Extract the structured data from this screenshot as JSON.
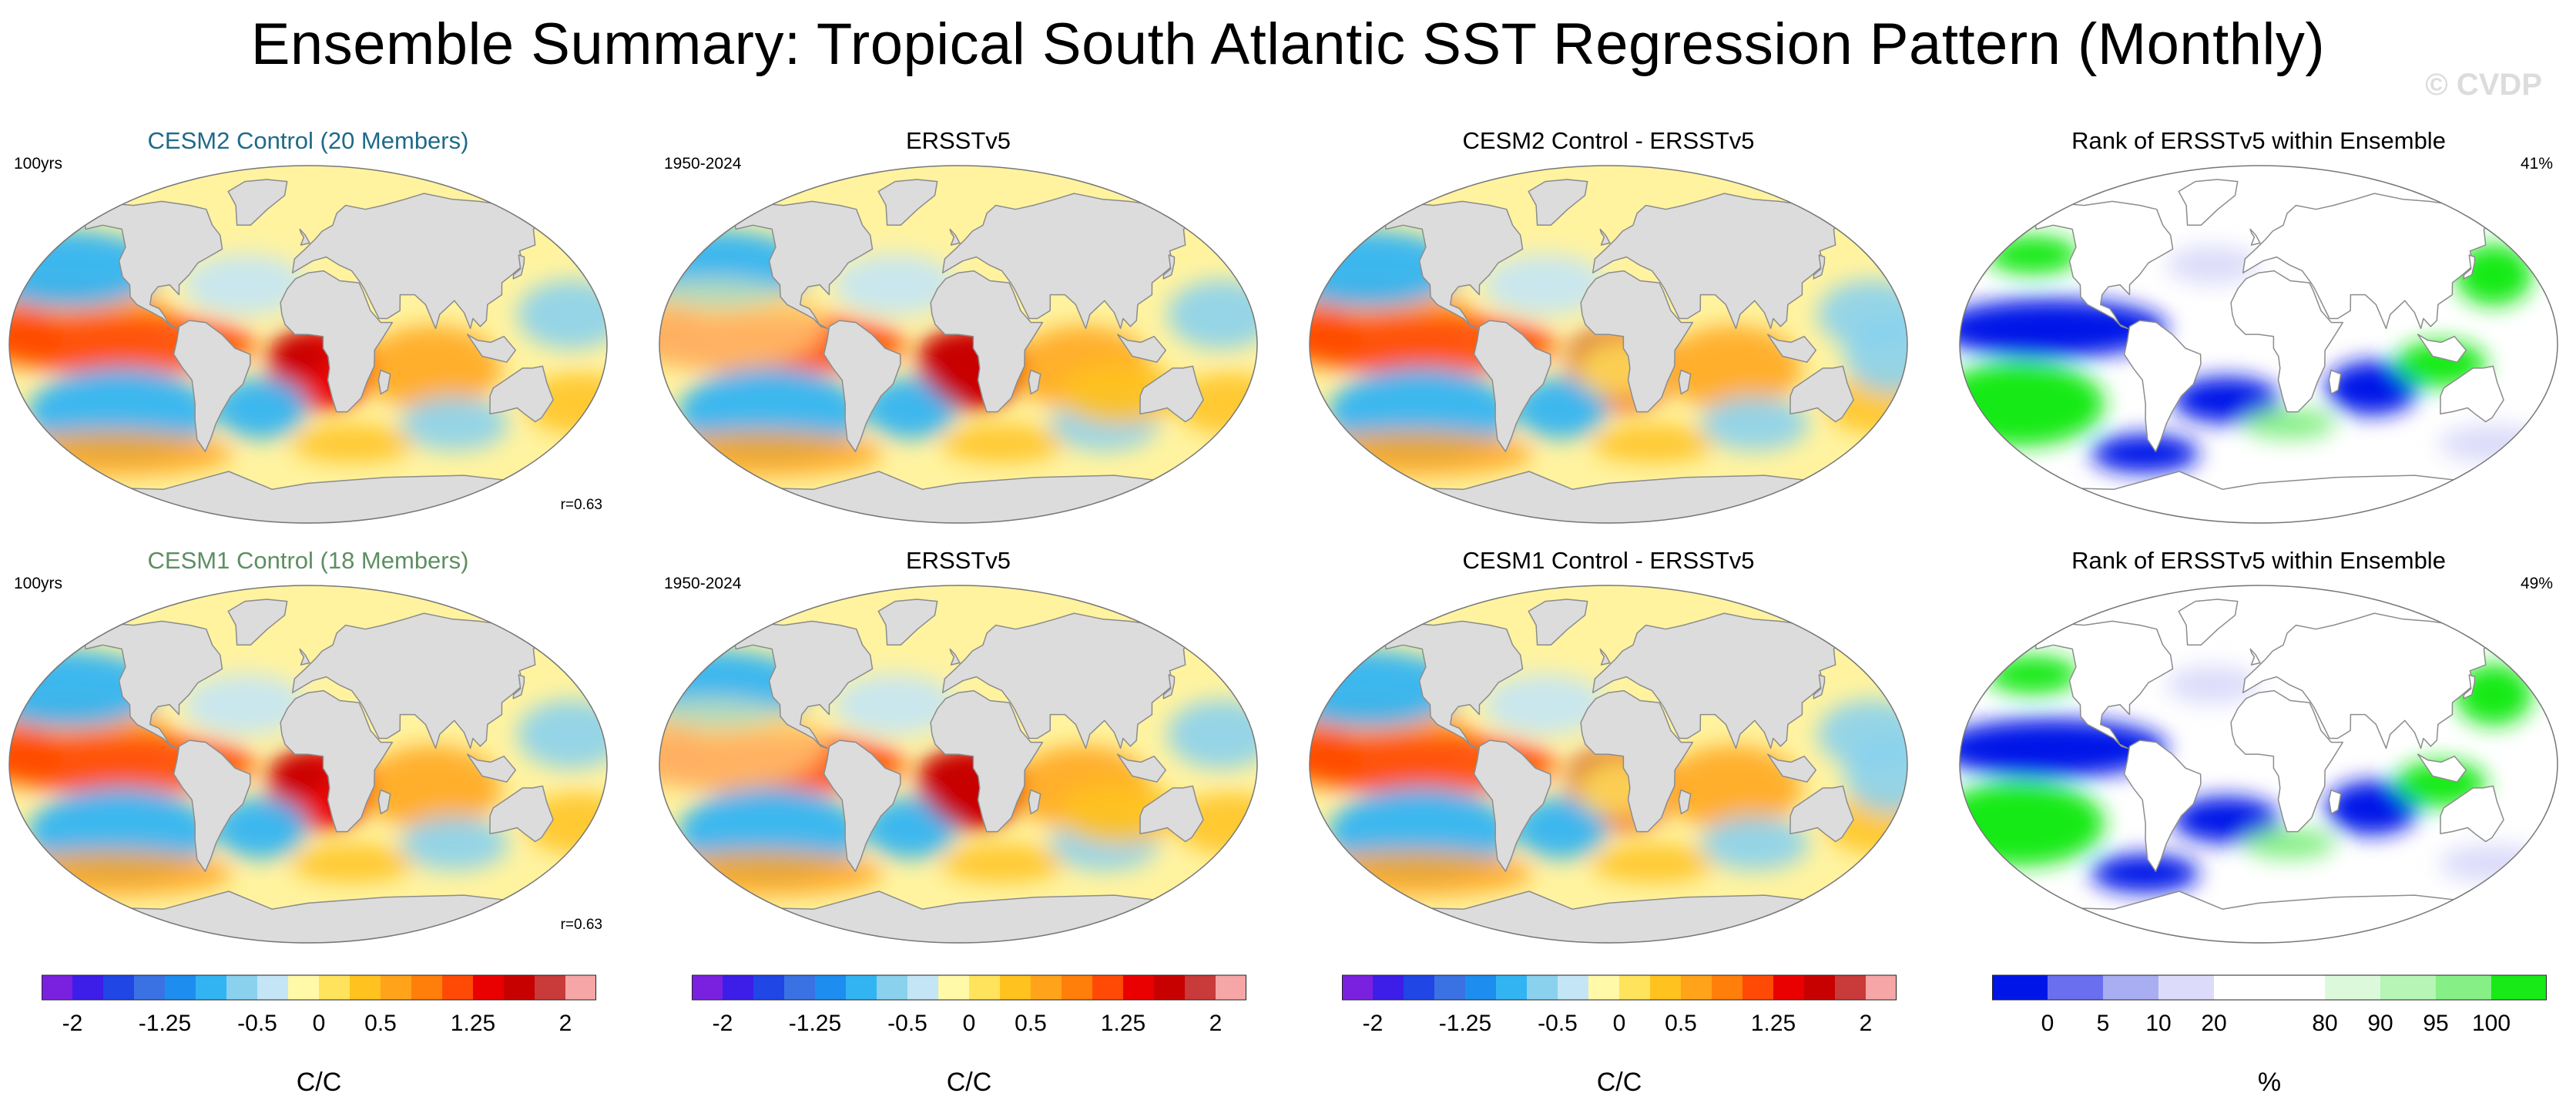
{
  "figure": {
    "title": "Ensemble Summary: Tropical South Atlantic SST Regression Pattern (Monthly)",
    "watermark": "© CVDP"
  },
  "colors": {
    "land": "#dcdcdc",
    "coast": "#8c8c8c",
    "regression_scale": [
      "#7a21e0",
      "#3d1de8",
      "#2046e6",
      "#3a72e3",
      "#1d8ef0",
      "#33b4f2",
      "#8ad1ee",
      "#c4e5f6",
      "#fff9a8",
      "#ffe35c",
      "#ffc21f",
      "#ffa31a",
      "#ff7f0a",
      "#ff4a05",
      "#ea0000",
      "#c70000",
      "#c93a3a",
      "#f6a6a6"
    ],
    "rank_scale": [
      "#0016e8",
      "#6a6ff0",
      "#a9adf1",
      "#dcdcfa",
      "#ffffff",
      "#ffffff",
      "#dcf9dc",
      "#b6f5b6",
      "#86f086",
      "#17ea17"
    ]
  },
  "panels": [
    {
      "title": "CESM2 Control (20 Members)",
      "title_color": "#1f6a8a",
      "left_label": "100yrs",
      "right_label": "",
      "corr_label": "r=0.63",
      "type": "regression"
    },
    {
      "title": "ERSSTv5",
      "title_color": "#000000",
      "left_label": "1950-2024",
      "right_label": "",
      "corr_label": "",
      "type": "regression"
    },
    {
      "title": "CESM2 Control - ERSSTv5",
      "title_color": "#000000",
      "left_label": "",
      "right_label": "",
      "corr_label": "",
      "type": "regression"
    },
    {
      "title": "Rank of ERSSTv5 within Ensemble",
      "title_color": "#000000",
      "left_label": "",
      "right_label": "41%",
      "corr_label": "",
      "type": "rank"
    },
    {
      "title": "CESM1 Control (18 Members)",
      "title_color": "#5e8e63",
      "left_label": "100yrs",
      "right_label": "",
      "corr_label": "r=0.63",
      "type": "regression"
    },
    {
      "title": "ERSSTv5",
      "title_color": "#000000",
      "left_label": "1950-2024",
      "right_label": "",
      "corr_label": "",
      "type": "regression"
    },
    {
      "title": "CESM1 Control - ERSSTv5",
      "title_color": "#000000",
      "left_label": "",
      "right_label": "",
      "corr_label": "",
      "type": "regression"
    },
    {
      "title": "Rank of ERSSTv5 within Ensemble",
      "title_color": "#000000",
      "left_label": "",
      "right_label": "49%",
      "corr_label": "",
      "type": "rank"
    }
  ],
  "colorbars": [
    {
      "unit": "C/C",
      "ticks": [
        "-2",
        "-1.25",
        "-0.5",
        "0",
        "0.5",
        "1.25",
        "2"
      ],
      "type": "regression"
    },
    {
      "unit": "C/C",
      "ticks": [
        "-2",
        "-1.25",
        "-0.5",
        "0",
        "0.5",
        "1.25",
        "2"
      ],
      "type": "regression"
    },
    {
      "unit": "C/C",
      "ticks": [
        "-2",
        "-1.25",
        "-0.5",
        "0",
        "0.5",
        "1.25",
        "2"
      ],
      "type": "regression"
    },
    {
      "unit": "%",
      "ticks": [
        "0",
        "5",
        "10",
        "20",
        "80",
        "90",
        "95",
        "100"
      ],
      "type": "rank"
    }
  ],
  "map_data": {
    "projection": "Robinson-like global ellipse",
    "regression_features": [
      {
        "name": "eastern tropical pacific",
        "lon": -130,
        "lat": 5,
        "value": 1.0
      },
      {
        "name": "tropical south atlantic",
        "lon": 5,
        "lat": -10,
        "value": 1.75
      },
      {
        "name": "north pacific",
        "lon": -155,
        "lat": 35,
        "value": -0.8
      },
      {
        "name": "south pacific",
        "lon": -125,
        "lat": -35,
        "value": -0.9
      },
      {
        "name": "southwest atlantic",
        "lon": -35,
        "lat": -30,
        "value": -0.9
      },
      {
        "name": "indian ocean",
        "lon": 75,
        "lat": -10,
        "value": 0.75
      },
      {
        "name": "western pacific",
        "lon": 150,
        "lat": 15,
        "value": -0.5
      }
    ],
    "rank_features": [
      {
        "name": "tropical pacific",
        "lon": -125,
        "lat": 5,
        "value": 0
      },
      {
        "name": "south atlantic",
        "lon": -20,
        "lat": -25,
        "value": 0
      },
      {
        "name": "south pacific",
        "lon": -140,
        "lat": -30,
        "value": 100
      },
      {
        "name": "indian ocean",
        "lon": 105,
        "lat": 0,
        "value": 100
      },
      {
        "name": "southern ocean",
        "lon": -80,
        "lat": -52,
        "value": 0
      }
    ]
  }
}
